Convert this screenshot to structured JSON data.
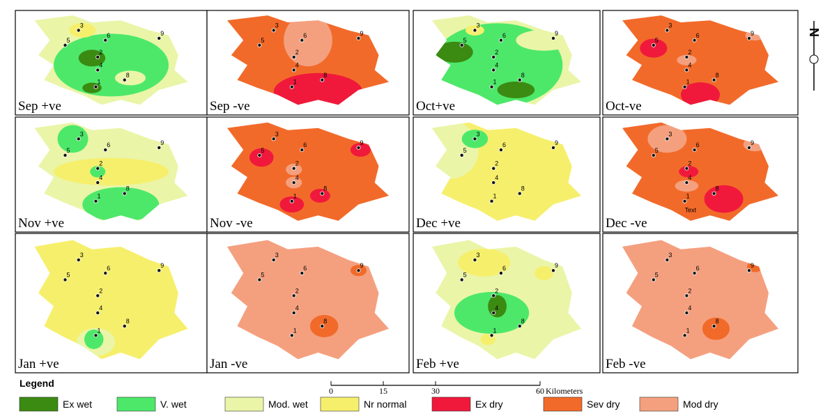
{
  "panels": [
    {
      "label": "Sep +ve"
    },
    {
      "label": "Sep -ve"
    },
    {
      "label": "Oct+ve"
    },
    {
      "label": "Oct-ve"
    },
    {
      "label": "Nov +ve"
    },
    {
      "label": "Nov -ve"
    },
    {
      "label": "Dec +ve"
    },
    {
      "label": "Dec -ve",
      "extra_label": "Text"
    },
    {
      "label": "Jan +ve"
    },
    {
      "label": "Jan -ve"
    },
    {
      "label": "Feb +ve"
    },
    {
      "label": "Feb -ve"
    }
  ],
  "stations": [
    "1",
    "2",
    "3",
    "4",
    "5",
    "6",
    "8",
    "9"
  ],
  "legend": {
    "title": "Legend",
    "items": [
      {
        "name": "Ex wet",
        "color": "#3b8a12"
      },
      {
        "name": "V. wet",
        "color": "#4de86a"
      },
      {
        "name": "Mod. wet",
        "color": "#eaf5a8"
      },
      {
        "name": "Nr normal",
        "color": "#f6ef6c"
      },
      {
        "name": "Ex dry",
        "color": "#f0193c"
      },
      {
        "name": "Sev dry",
        "color": "#f26a2a"
      },
      {
        "name": "Mod dry",
        "color": "#f4a07f"
      }
    ]
  },
  "scale_bar": {
    "ticks": [
      0,
      15,
      30,
      60
    ],
    "unit": "Kilometers"
  },
  "north_label": "N"
}
